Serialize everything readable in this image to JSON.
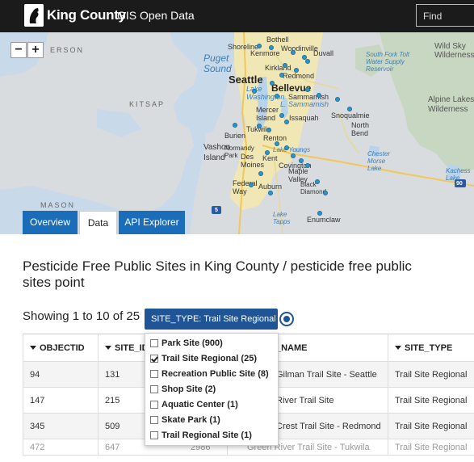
{
  "header": {
    "brand": "King County",
    "subtitle": "GIS Open Data",
    "search_placeholder": "Find"
  },
  "map": {
    "zoom_in": "+",
    "zoom_out": "−",
    "labels": {
      "jefferson": "ERSON",
      "kitsap": "KITSAP",
      "mason": "MASON",
      "puget_sound": "Puget\nSound",
      "seattle": "Seattle",
      "bellevue": "Bellevue",
      "bothell": "Bothell",
      "shoreline": "Shoreline",
      "kenmore": "Kenmore",
      "woodinville": "Woodinville",
      "duvall": "Duvall",
      "kirkland": "Kirkland",
      "redmond": "Redmond",
      "lake_washington": "Lake\nWashington",
      "mercer_island": "Mercer\nIsland",
      "sammamish": "Sammamish",
      "lake_sammamish": "L. Sammamish",
      "issaquah": "Issaquah",
      "snoqualmie": "Snoqualmie",
      "north_bend": "North\nBend",
      "burien": "Burien",
      "tukwila": "Tukwila",
      "renton": "Renton",
      "normandy_park": "Normandy\nPark",
      "des_moines": "Des\nMoines",
      "kent": "Kent",
      "covington": "Covington",
      "maple_valley": "Maple\nValley",
      "vashon_island": "Vashon\nIsland",
      "federal_way": "Federal\nWay",
      "auburn": "Auburn",
      "black_diamond": "Black\nDiamond",
      "enumclaw": "Enumclaw",
      "lake_tapps": "Lake\nTapps",
      "lake_youngs": "Lake Youngs",
      "chester_morse": "Chester\nMorse\nLake",
      "tolt_reservoir": "South Fork Tolt\nWater Supply\nReservoir",
      "wild_sky": "Wild Sky\nWilderness",
      "alpine_lakes": "Alpine Lakes\nWilderness",
      "kachess": "Kachess\nLake",
      "hwy_90": "90",
      "hwy_5": "5"
    }
  },
  "tabs": [
    {
      "label": "Overview"
    },
    {
      "label": "Data"
    },
    {
      "label": "API Explorer"
    }
  ],
  "page": {
    "title": "Pesticide Free Public Sites in King County / pesticide free public sites point",
    "showing": "Showing 1 to 10 of 25",
    "filter_chip": "SITE_TYPE: Trail Site Regional ▾"
  },
  "table": {
    "columns": [
      "OBJECTID",
      "SITE_ID",
      "_NAME",
      "SITE_TYPE"
    ],
    "rows": [
      {
        "objectid": "94",
        "site_id": "131",
        "name": "Gilman Trail Site - Seattle",
        "site_type": "Trail Site Regional"
      },
      {
        "objectid": "147",
        "site_id": "215",
        "name": "River Trail Site",
        "site_type": "Trail Site Regional"
      },
      {
        "objectid": "345",
        "site_id": "509",
        "name": "Crest Trail Site - Redmond",
        "site_type": "Trail Site Regional"
      },
      {
        "objectid": "472",
        "site_id": "647",
        "mid": "2986",
        "name": "Green River Trail Site - Tukwila",
        "site_type": "Trail Site Regional"
      }
    ]
  },
  "dropdown": {
    "options": [
      {
        "label": "Park Site (900)",
        "checked": false
      },
      {
        "label": "Trail Site Regional (25)",
        "checked": true
      },
      {
        "label": "Recreation Public Site (8)",
        "checked": false
      },
      {
        "label": "Shop Site (2)",
        "checked": false
      },
      {
        "label": "Aquatic Center (1)",
        "checked": false
      },
      {
        "label": "Skate Park (1)",
        "checked": false
      },
      {
        "label": "Trail Regional Site (1)",
        "checked": false
      }
    ]
  },
  "colors": {
    "header_bg": "#1b1b1b",
    "tab_blue": "#1a6eb9",
    "filter_blue": "#1f5597",
    "marker": "#2f94c8"
  }
}
